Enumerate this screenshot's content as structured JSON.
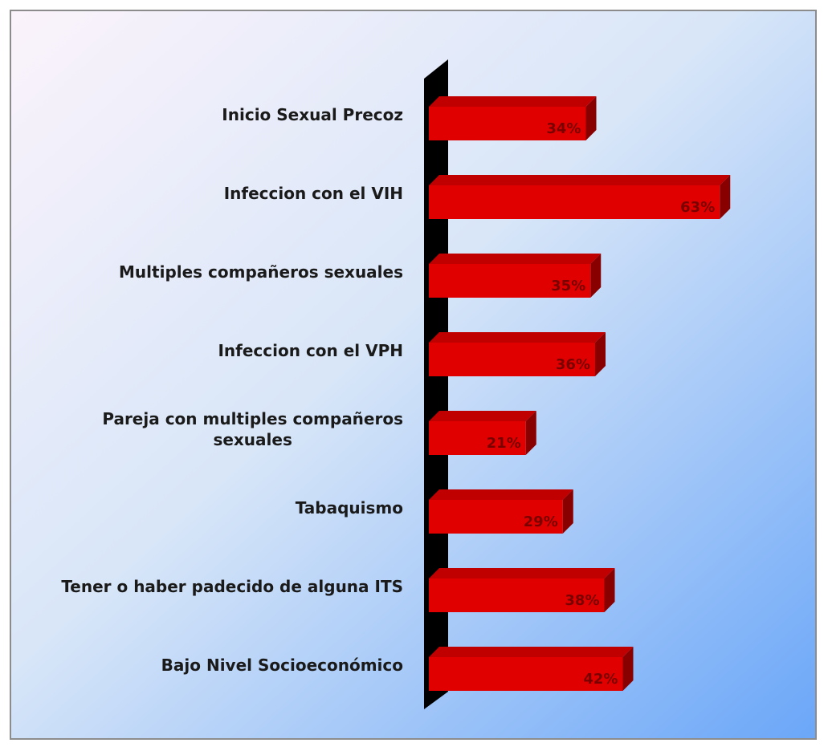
{
  "chart_data": {
    "type": "bar",
    "orientation": "horizontal",
    "style": "3d",
    "categories": [
      "Inicio Sexual Precoz",
      "Infeccion con el VIH",
      "Multiples compañeros sexuales",
      "Infeccion con el VPH",
      "Pareja con multiples compañeros sexuales",
      "Tabaquismo",
      "Tener o haber padecido de alguna ITS",
      "Bajo Nivel Socioeconómico"
    ],
    "label_lines": [
      [
        "Inicio Sexual Precoz"
      ],
      [
        "Infeccion con el VIH"
      ],
      [
        "Multiples compañeros sexuales"
      ],
      [
        "Infeccion con el VPH"
      ],
      [
        "Pareja con multiples compañeros",
        "sexuales"
      ],
      [
        "Tabaquismo"
      ],
      [
        "Tener o haber padecido de alguna ITS"
      ],
      [
        "Bajo Nivel Socioeconómico"
      ]
    ],
    "values": [
      34,
      63,
      35,
      36,
      21,
      29,
      38,
      42
    ],
    "data_labels": [
      "34%",
      "63%",
      "35%",
      "36%",
      "21%",
      "29%",
      "38%",
      "42%"
    ],
    "unit": "%",
    "title": "",
    "xlabel": "",
    "ylabel": "",
    "xlim": [
      0,
      65
    ],
    "grid": false,
    "legend": "none",
    "colors": {
      "bar_front": "#e00000",
      "bar_top": "#c00000",
      "bar_side": "#880000",
      "axis_wall": "#000000",
      "background_from": "#fbf3fb",
      "background_to": "#6aa6f8"
    }
  }
}
